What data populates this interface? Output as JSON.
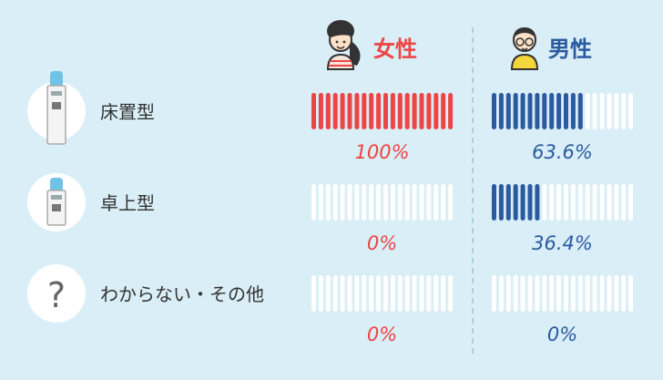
{
  "chart_data": {
    "type": "bar",
    "categories": [
      "床置型",
      "卓上型",
      "わからない・その他"
    ],
    "series": [
      {
        "name": "女性",
        "values": [
          100,
          0,
          0
        ],
        "labels": [
          "100%",
          "0%",
          "0%"
        ],
        "color": "#ee4444"
      },
      {
        "name": "男性",
        "values": [
          63.6,
          36.4,
          0
        ],
        "labels": [
          "63.6%",
          "36.4%",
          "0%"
        ],
        "color": "#2b5aa0"
      }
    ],
    "unit": "%",
    "ylim": [
      0,
      100
    ],
    "question_mark": "?"
  },
  "colors": {
    "background": "#d9eef6",
    "empty_bar": "#ffffff",
    "divider": "#a9cfe6",
    "icon_circle": "#ffffff"
  },
  "icons": {
    "floor": "water-server-floor-icon",
    "desk": "water-server-desk-icon",
    "unknown": "question-icon",
    "female": "female-avatar-icon",
    "male": "male-avatar-icon"
  }
}
